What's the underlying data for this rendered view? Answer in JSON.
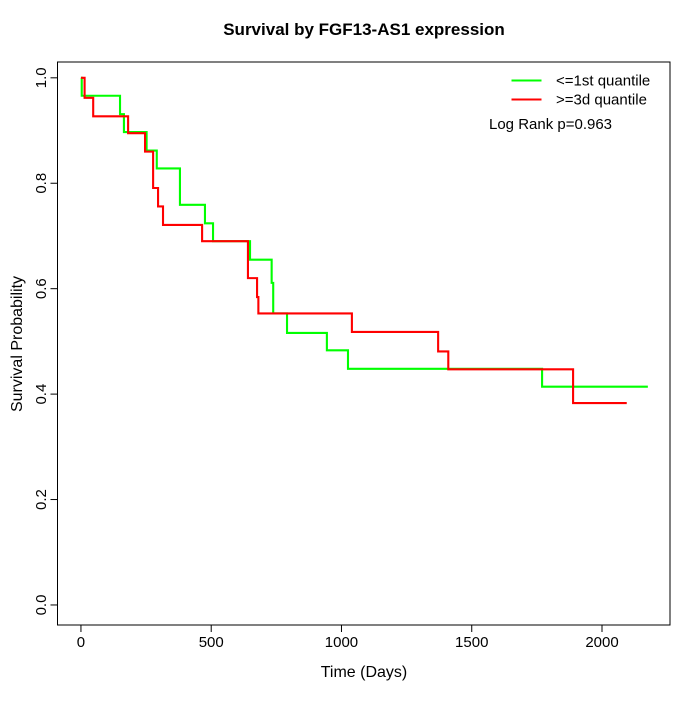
{
  "chart_data": {
    "type": "line",
    "subtype": "kaplan_meier_step",
    "title": "Survival by FGF13-AS1 expression",
    "xlabel": "Time (Days)",
    "ylabel": "Survival Probability",
    "annotation": "Log Rank p=0.963",
    "legend_position": "top-right",
    "grid": false,
    "xlim": [
      -90,
      2261
    ],
    "ylim": [
      -0.038,
      1.03
    ],
    "x_ticks": [
      0,
      500,
      1000,
      1500,
      2000
    ],
    "x_tick_labels": [
      "0",
      "500",
      "1000",
      "1500",
      "2000"
    ],
    "y_ticks": [
      0.0,
      0.2,
      0.4,
      0.6,
      0.8,
      1.0
    ],
    "y_tick_labels": [
      "0.0",
      "0.2",
      "0.4",
      "0.6",
      "0.8",
      "1.0"
    ],
    "series": [
      {
        "name": "<=1st quantile",
        "color": "#00ff00",
        "end_day": 2176,
        "steps": [
          [
            0,
            1.0
          ],
          [
            3,
            0.966
          ],
          [
            150,
            0.931
          ],
          [
            165,
            0.897
          ],
          [
            252,
            0.862
          ],
          [
            291,
            0.828
          ],
          [
            380,
            0.759
          ],
          [
            476,
            0.724
          ],
          [
            507,
            0.69
          ],
          [
            649,
            0.655
          ],
          [
            732,
            0.611
          ],
          [
            738,
            0.553
          ],
          [
            791,
            0.516
          ],
          [
            944,
            0.483
          ],
          [
            1025,
            0.448
          ],
          [
            1770,
            0.414
          ]
        ]
      },
      {
        "name": ">=3d quantile",
        "color": "#ff0000",
        "end_day": 2095,
        "steps": [
          [
            0,
            1.0
          ],
          [
            14,
            0.962
          ],
          [
            47,
            0.927
          ],
          [
            181,
            0.895
          ],
          [
            246,
            0.86
          ],
          [
            277,
            0.791
          ],
          [
            296,
            0.756
          ],
          [
            315,
            0.721
          ],
          [
            465,
            0.69
          ],
          [
            641,
            0.62
          ],
          [
            676,
            0.584
          ],
          [
            681,
            0.553
          ],
          [
            1040,
            0.518
          ],
          [
            1371,
            0.481
          ],
          [
            1410,
            0.447
          ],
          [
            1889,
            0.383
          ]
        ]
      }
    ]
  }
}
